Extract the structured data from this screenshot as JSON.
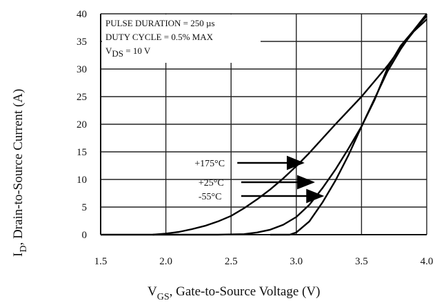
{
  "chart_data": {
    "type": "line",
    "xlabel_main": "V",
    "xlabel_sub": "GS",
    "xlabel_rest": ", Gate-to-Source Voltage (V)",
    "ylabel_main": "I",
    "ylabel_sub": "D",
    "ylabel_rest": ", Drain-to-Source Current (A)",
    "xlim": [
      1.5,
      4.0
    ],
    "ylim": [
      0,
      40
    ],
    "x_ticks": [
      "1.5",
      "2.0",
      "2.5",
      "3.0",
      "3.5",
      "4.0"
    ],
    "x_tick_values": [
      1.5,
      2.0,
      2.5,
      3.0,
      3.5,
      4.0
    ],
    "y_ticks": [
      "0",
      "5",
      "10",
      "15",
      "20",
      "25",
      "30",
      "35",
      "40"
    ],
    "y_tick_values": [
      0,
      5,
      10,
      15,
      20,
      25,
      30,
      35,
      40
    ],
    "grid": true,
    "annotation": {
      "line1": "PULSE DURATION = 250 µs",
      "line2": "DUTY CYCLE = 0.5% MAX",
      "line3_main": "V",
      "line3_sub": "DS",
      "line3_rest": " = 10 V"
    },
    "series": [
      {
        "name": "+175°C",
        "points": [
          [
            1.5,
            0
          ],
          [
            1.6,
            0
          ],
          [
            1.9,
            0
          ],
          [
            2.0,
            0.2
          ],
          [
            2.1,
            0.5
          ],
          [
            2.2,
            1.0
          ],
          [
            2.3,
            1.6
          ],
          [
            2.4,
            2.4
          ],
          [
            2.5,
            3.4
          ],
          [
            2.6,
            4.8
          ],
          [
            2.7,
            6.4
          ],
          [
            2.8,
            8.2
          ],
          [
            2.9,
            10.2
          ],
          [
            3.0,
            12.4
          ],
          [
            3.1,
            14.8
          ],
          [
            3.2,
            17.4
          ],
          [
            3.3,
            20.0
          ],
          [
            3.4,
            22.5
          ],
          [
            3.5,
            25.0
          ],
          [
            3.6,
            27.8
          ],
          [
            3.7,
            30.6
          ],
          [
            3.8,
            33.8
          ],
          [
            3.9,
            36.8
          ],
          [
            4.0,
            39.0
          ]
        ]
      },
      {
        "name": "+25°C",
        "points": [
          [
            1.9,
            0
          ],
          [
            2.4,
            0
          ],
          [
            2.6,
            0.1
          ],
          [
            2.7,
            0.4
          ],
          [
            2.8,
            0.9
          ],
          [
            2.9,
            1.8
          ],
          [
            3.0,
            3.2
          ],
          [
            3.1,
            5.4
          ],
          [
            3.2,
            8.4
          ],
          [
            3.3,
            11.8
          ],
          [
            3.4,
            15.6
          ],
          [
            3.5,
            19.6
          ],
          [
            3.6,
            24.4
          ],
          [
            3.7,
            30.2
          ],
          [
            3.8,
            34.2
          ],
          [
            3.9,
            37.0
          ],
          [
            4.0,
            39.6
          ]
        ]
      },
      {
        "name": "-55°C",
        "points": [
          [
            2.8,
            0
          ],
          [
            2.95,
            0
          ],
          [
            3.0,
            0.4
          ],
          [
            3.1,
            2.4
          ],
          [
            3.2,
            5.8
          ],
          [
            3.3,
            9.8
          ],
          [
            3.4,
            14.4
          ],
          [
            3.5,
            19.6
          ],
          [
            3.6,
            24.6
          ],
          [
            3.7,
            29.6
          ],
          [
            3.8,
            33.6
          ],
          [
            3.9,
            37.0
          ],
          [
            4.0,
            40.0
          ]
        ]
      }
    ],
    "arrows": [
      {
        "label": "+175°C",
        "label_x": 2.22,
        "y": 13.0,
        "tip_x": 3.05
      },
      {
        "label": "+25°C",
        "label_x": 2.25,
        "y": 9.5,
        "tip_x": 3.13
      },
      {
        "label": "-55°C",
        "label_x": 2.25,
        "y": 7.0,
        "tip_x": 3.2
      }
    ]
  }
}
